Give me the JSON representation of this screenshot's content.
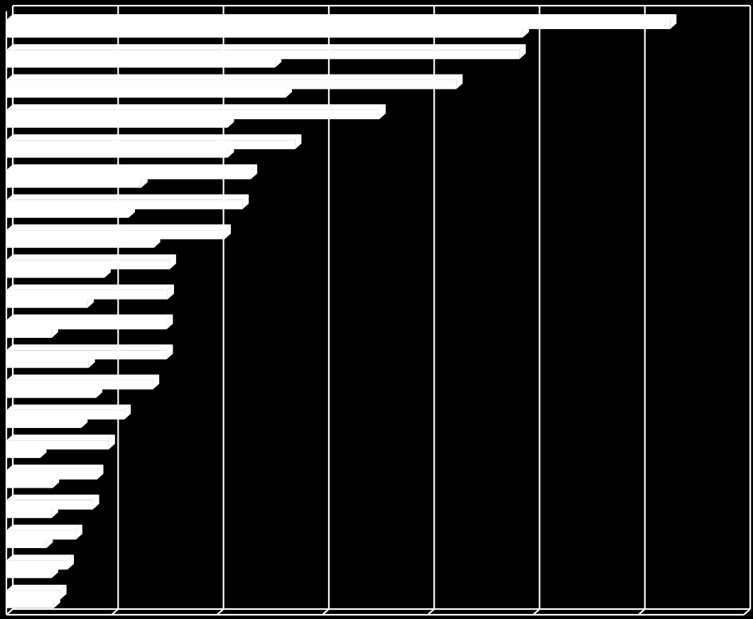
{
  "chart_data": {
    "type": "bar",
    "orientation": "horizontal",
    "style": "3d",
    "categories": [
      "",
      "",
      "",
      "",
      "",
      "",
      "",
      "",
      "",
      "",
      "",
      "",
      "",
      "",
      "",
      "",
      "",
      "",
      "",
      ""
    ],
    "series": [
      {
        "values": [
          6.3,
          4.87,
          4.27,
          3.54,
          2.74,
          2.32,
          2.24,
          2.07,
          1.55,
          1.53,
          1.52,
          1.52,
          1.39,
          1.12,
          0.97,
          0.86,
          0.82,
          0.66,
          0.58,
          0.51
        ]
      },
      {
        "values": [
          4.9,
          2.55,
          2.65,
          2.1,
          2.1,
          1.28,
          1.16,
          1.4,
          0.93,
          0.77,
          0.43,
          0.78,
          0.85,
          0.71,
          0.32,
          0.44,
          0.43,
          0.38,
          0.43,
          0.45
        ]
      }
    ],
    "xlim": [
      0,
      7
    ],
    "grid": true,
    "colors": {
      "background": "#000000",
      "bars": "#ffffff",
      "axes": "#ffffff",
      "grid": "#ffffff"
    }
  }
}
